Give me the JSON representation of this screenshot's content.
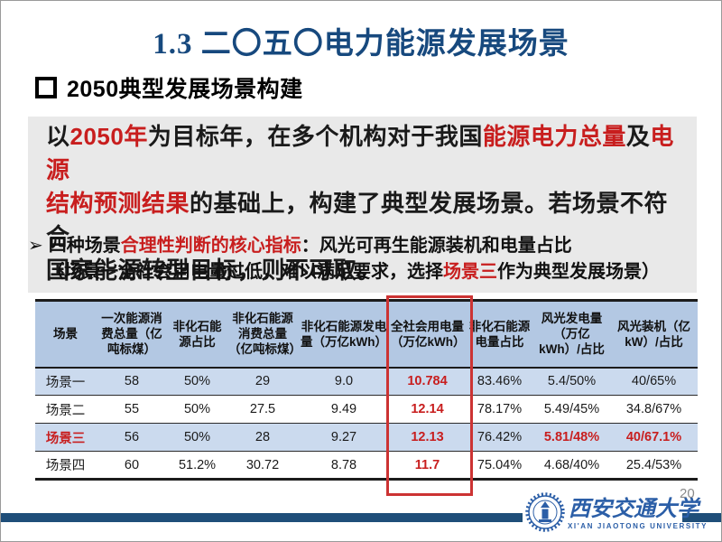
{
  "colors": {
    "title_navy": "#17497E",
    "accent_red": "#C81E1E",
    "table_header_bg": "#B3C8E3",
    "table_row_bg": "#CBDAEE",
    "intro_bg": "#E9E9E9",
    "footer_navy": "#1F4E79",
    "logo_blue": "#2B5EA7"
  },
  "slide": {
    "title": "1.3 二〇五〇电力能源发展场景",
    "page_number": "20"
  },
  "heading": {
    "text": "2050典型发展场景构建"
  },
  "intro_box": {
    "lines": [
      [
        {
          "t": "以"
        },
        {
          "t": "2050年",
          "red": true
        },
        {
          "t": "为目标年，在多个机构对于我国"
        },
        {
          "t": "能源电力总量",
          "red": true
        },
        {
          "t": "及"
        },
        {
          "t": "电源",
          "red": true
        }
      ],
      [
        {
          "t": "结构预测结果",
          "red": true
        },
        {
          "t": "的基础上，构建了典型发展场景。若场景不符合"
        }
      ],
      [
        {
          "t": "国家能源转型目标，则不可取。"
        }
      ]
    ]
  },
  "key_point": {
    "arrow": "➢",
    "line1": [
      {
        "t": "四种场景"
      },
      {
        "t": "合理性判断的核心指标",
        "red": true
      },
      {
        "t": "：风光可再生能源装机和电量占比"
      }
    ],
    "line2": [
      {
        "t": "（场景一全社会用电量过低，难以满足要求，选择"
      },
      {
        "t": "场景三",
        "red": true
      },
      {
        "t": "作为典型发展场景）"
      }
    ]
  },
  "table": {
    "headers": [
      "场景",
      "一次能源消费总量（亿吨标煤）",
      "非化石能源占比",
      "非化石能源消费总量（亿吨标煤）",
      "非化石能源发电量（万亿kWh）",
      "全社会用电量（万亿kWh）",
      "非化石能源电量占比",
      "风光发电量（万亿kWh）/占比",
      "风光装机（亿kW）/占比"
    ],
    "highlight_column_index": 5,
    "rows": [
      {
        "label": "场景一",
        "label_red": false,
        "shaded": true,
        "cells": [
          {
            "v": "58"
          },
          {
            "v": "50%"
          },
          {
            "v": "29"
          },
          {
            "v": "9.0"
          },
          {
            "v": "10.784",
            "red": true
          },
          {
            "v": "83.46%"
          },
          {
            "v": "5.4/50%"
          },
          {
            "v": "40/65%"
          }
        ]
      },
      {
        "label": "场景二",
        "label_red": false,
        "shaded": false,
        "cells": [
          {
            "v": "55"
          },
          {
            "v": "50%"
          },
          {
            "v": "27.5"
          },
          {
            "v": "9.49"
          },
          {
            "v": "12.14",
            "red": true
          },
          {
            "v": "78.17%"
          },
          {
            "v": "5.49/45%"
          },
          {
            "v": "34.8/67%"
          }
        ]
      },
      {
        "label": "场景三",
        "label_red": true,
        "shaded": true,
        "cells": [
          {
            "v": "56"
          },
          {
            "v": "50%"
          },
          {
            "v": "28"
          },
          {
            "v": "9.27"
          },
          {
            "v": "12.13",
            "red": true
          },
          {
            "v": "76.42%"
          },
          {
            "v": "5.81/48%",
            "red": true
          },
          {
            "v": "40/67.1%",
            "red": true
          }
        ]
      },
      {
        "label": "场景四",
        "label_red": false,
        "shaded": false,
        "cells": [
          {
            "v": "60"
          },
          {
            "v": "51.2%"
          },
          {
            "v": "30.72"
          },
          {
            "v": "8.78"
          },
          {
            "v": "11.7",
            "red": true
          },
          {
            "v": "75.04%"
          },
          {
            "v": "4.68/40%"
          },
          {
            "v": "25.4/53%"
          }
        ]
      }
    ]
  },
  "footer": {
    "university_cn": "西安交通大学",
    "university_en": "XI'AN JIAOTONG UNIVERSITY"
  }
}
